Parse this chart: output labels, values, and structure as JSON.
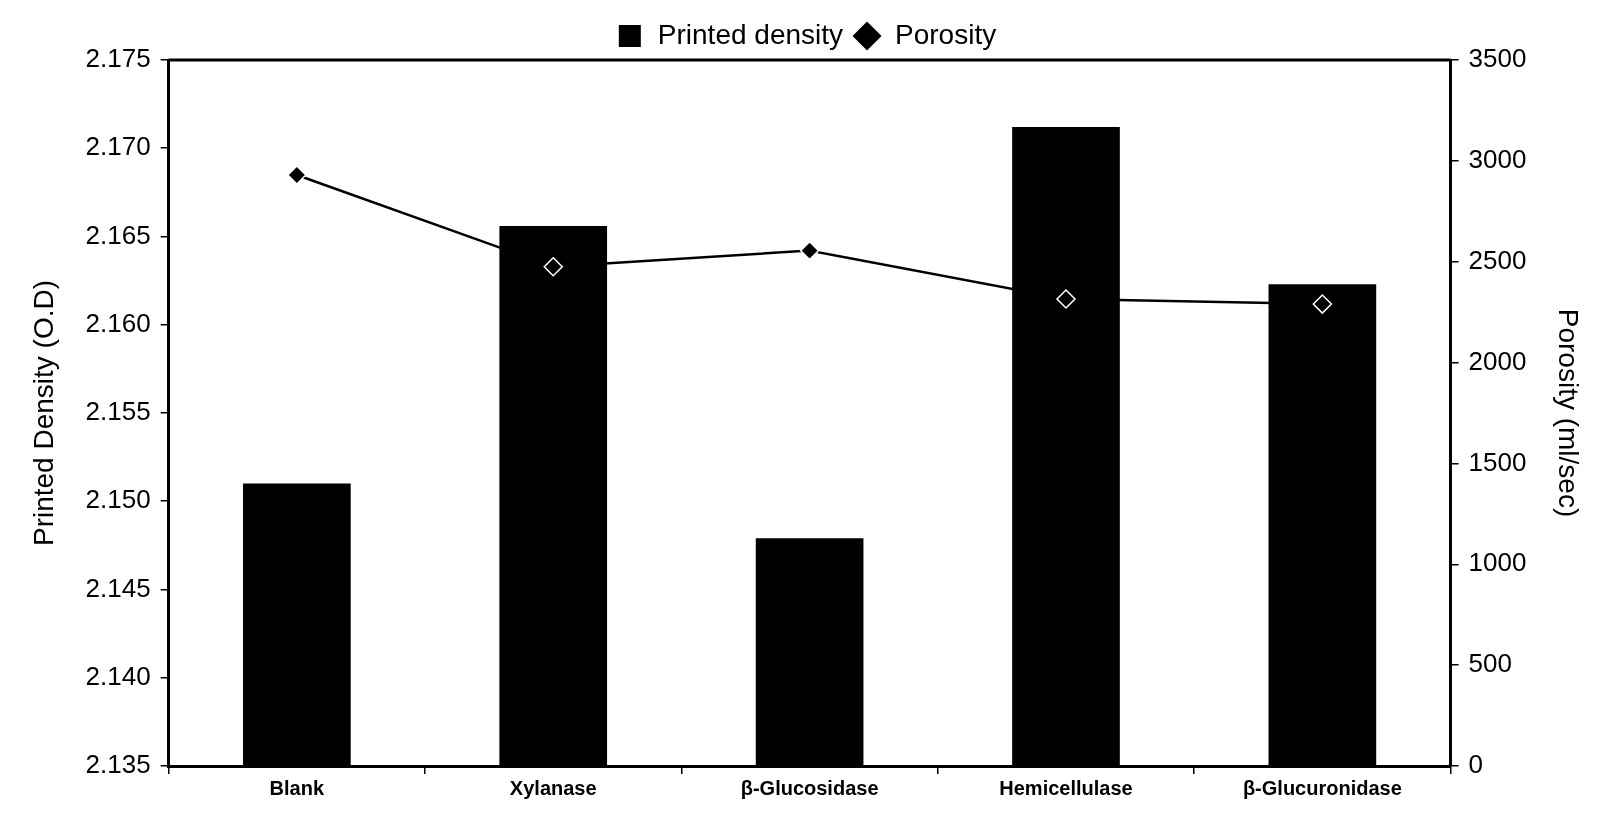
{
  "chart_data": {
    "type": "bar",
    "categories": [
      "Blank",
      "Xylanase",
      "β-Glucosidase",
      "Hemicellulase",
      "β-Glucuronidase"
    ],
    "ylabel": "Printed Density (O.D)",
    "y2label": "Porosity (ml/sec)",
    "ylim": [
      2.135,
      2.175
    ],
    "yticks": [
      2.135,
      {
        "value": 2.14,
        "label": "2.140"
      },
      2.145,
      {
        "value": 2.15,
        "label": "2.150"
      },
      2.155,
      {
        "value": 2.16,
        "label": "2.160"
      },
      2.165,
      {
        "value": 2.17,
        "label": "2.170"
      },
      2.175
    ],
    "y2lim": [
      0,
      3500
    ],
    "y2ticks": [
      0,
      500,
      1000,
      1500,
      2000,
      2500,
      3000,
      3500
    ],
    "series": [
      {
        "name": "Printed density",
        "type": "bar",
        "color": "#000000",
        "values": [
          2.151,
          2.1656,
          2.1479,
          2.1712,
          2.1623
        ]
      },
      {
        "name": "Porosity",
        "type": "line",
        "axis": "y2",
        "color": "#000000",
        "values": [
          2930,
          2475,
          2555,
          2315,
          2290
        ]
      }
    ],
    "marker": "diamond",
    "legend": "top",
    "grid": false
  }
}
